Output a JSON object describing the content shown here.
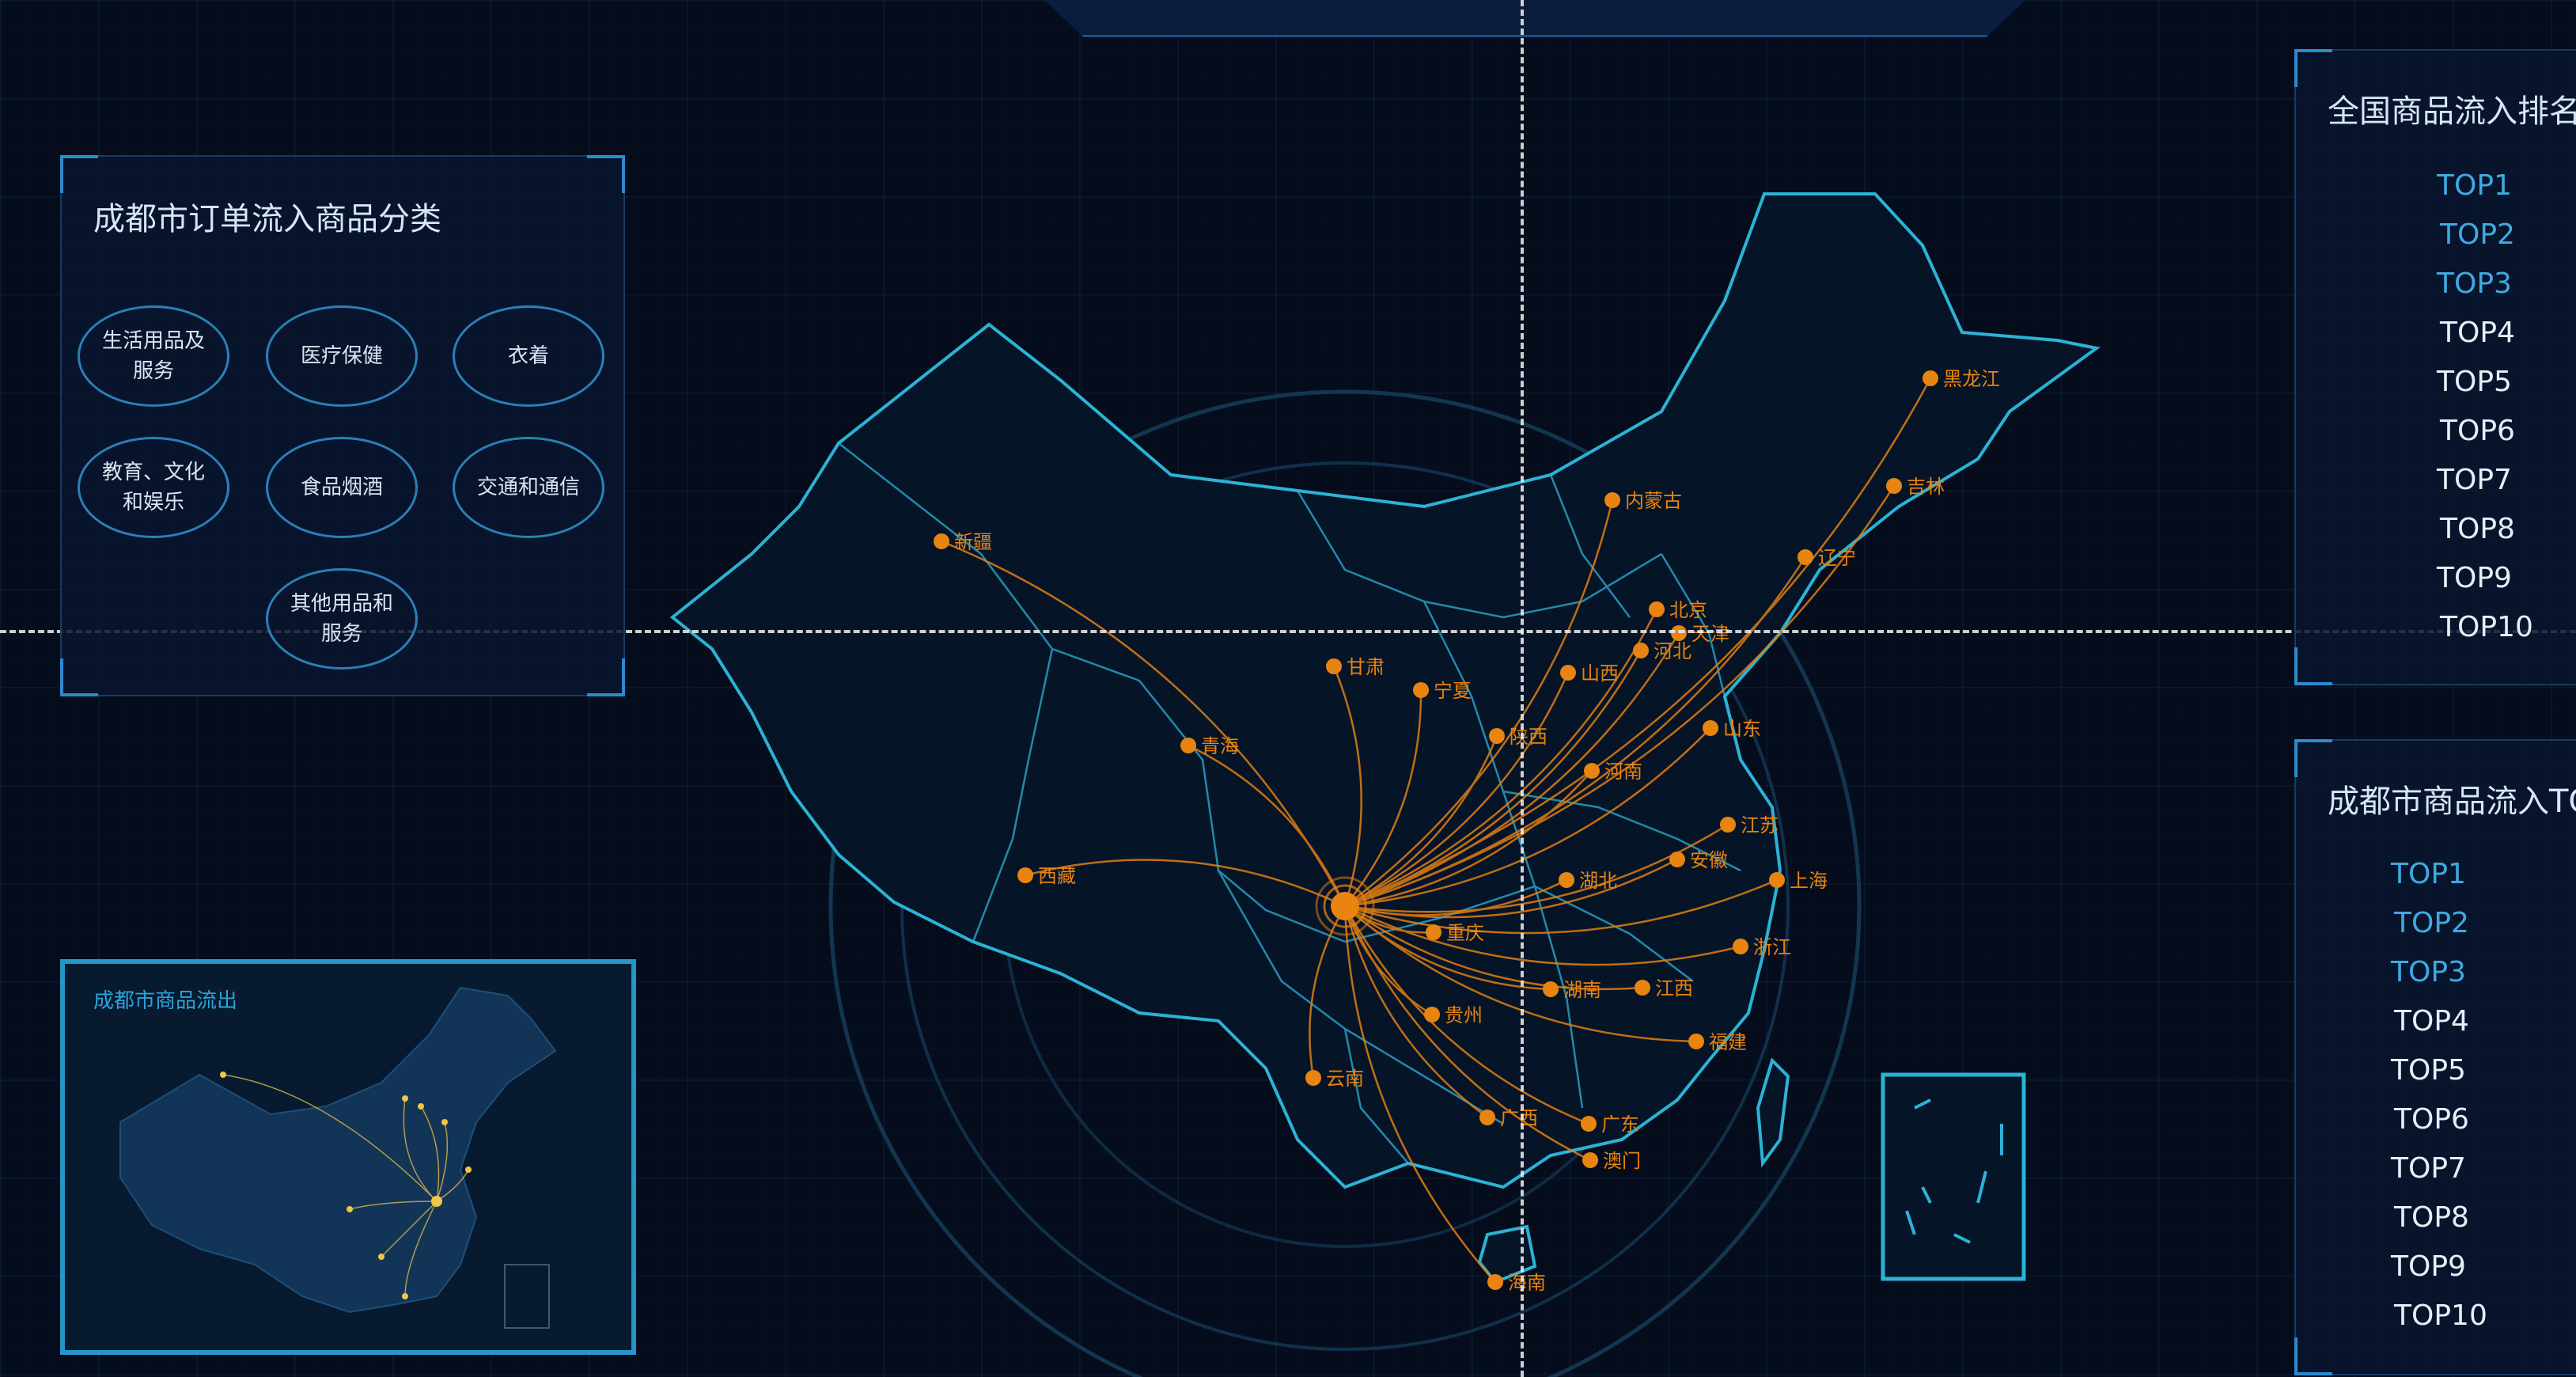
{
  "category_panel": {
    "title": "成都市订单流入商品分类",
    "categories": [
      "生活用品及服务",
      "医疗保健",
      "衣着",
      "教育、文化和娱乐",
      "食品烟酒",
      "交通和通信",
      "其他用品和服务"
    ]
  },
  "outflow_panel": {
    "title": "成都市商品流出"
  },
  "national_ranking": {
    "title": "全国商品流入排名",
    "items": [
      "TOP1",
      "TOP2",
      "TOP3",
      "TOP4",
      "TOP5",
      "TOP6",
      "TOP7",
      "TOP8",
      "TOP9",
      "TOP10"
    ],
    "highlighted_count": 3
  },
  "chengdu_ranking": {
    "title": "成都市商品流入TOP",
    "items": [
      "TOP1",
      "TOP2",
      "TOP3",
      "TOP4",
      "TOP5",
      "TOP6",
      "TOP7",
      "TOP8",
      "TOP9",
      "TOP10"
    ],
    "highlighted_count": 3
  },
  "map": {
    "origin": "成都",
    "provinces": [
      "新疆",
      "西藏",
      "青海",
      "甘肃",
      "宁夏",
      "内蒙古",
      "黑龙江",
      "吉林",
      "辽宁",
      "北京",
      "天津",
      "河北",
      "山西",
      "陕西",
      "山东",
      "河南",
      "江苏",
      "安徽",
      "上海",
      "湖北",
      "重庆",
      "浙江",
      "湖南",
      "江西",
      "贵州",
      "云南",
      "福建",
      "广西",
      "广东",
      "澳门",
      "海南"
    ],
    "colors": {
      "border": "#2bb3d6",
      "flow": "#e07f12",
      "node": "#e8840f"
    }
  }
}
